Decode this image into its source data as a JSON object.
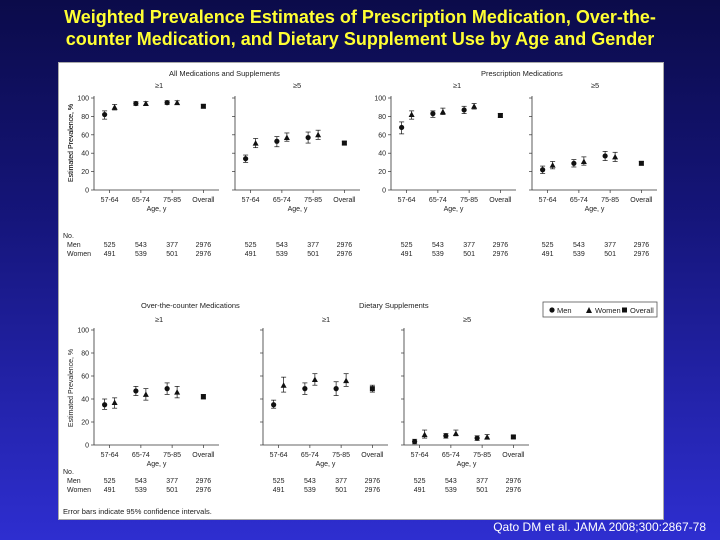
{
  "slide": {
    "title_line1": "Weighted Prevalence Estimates of Prescription Medication, Over-the-",
    "title_line2": "counter Medication, and Dietary Supplement Use by Age and Gender",
    "citation": "Qato DM et al. JAMA 2008;300:2867-78",
    "footnote": "Error bars indicate 95% confidence intervals."
  },
  "legend": {
    "men": "Men",
    "women": "Women",
    "overall": "Overall"
  },
  "axes": {
    "ylabel": "Estimated Prevalence, %",
    "xlabel": "Age, y",
    "yticks": [
      "0",
      "20",
      "40",
      "60",
      "80",
      "100"
    ],
    "categories": [
      "57-64",
      "65-74",
      "75-85",
      "Overall"
    ]
  },
  "counts": {
    "no_label": "No.",
    "men_label": "Men",
    "women_label": "Women",
    "men": [
      "525",
      "543",
      "377",
      "2976"
    ],
    "women": [
      "491",
      "539",
      "501",
      "2976"
    ]
  },
  "chart_data": [
    {
      "type": "scatter",
      "title": "All Medications and Supplements",
      "subtitle": "≥1",
      "categories": [
        "57-64",
        "65-74",
        "75-85",
        "Overall"
      ],
      "ylim": [
        0,
        100
      ],
      "series": [
        {
          "name": "Men",
          "values": [
            82,
            94,
            95,
            null
          ],
          "ci_low": [
            77,
            92,
            93,
            null
          ],
          "ci_high": [
            86,
            96,
            97,
            null
          ]
        },
        {
          "name": "Women",
          "values": [
            90,
            94,
            95,
            null
          ],
          "ci_low": [
            87,
            92,
            93,
            null
          ],
          "ci_high": [
            93,
            96,
            97,
            null
          ]
        },
        {
          "name": "Overall",
          "values": [
            null,
            null,
            null,
            91
          ],
          "ci_low": [
            null,
            null,
            null,
            89
          ],
          "ci_high": [
            null,
            null,
            null,
            93
          ]
        }
      ]
    },
    {
      "type": "scatter",
      "title": "",
      "subtitle": "≥5",
      "categories": [
        "57-64",
        "65-74",
        "75-85",
        "Overall"
      ],
      "ylim": [
        0,
        100
      ],
      "series": [
        {
          "name": "Men",
          "values": [
            34,
            53,
            57,
            null
          ],
          "ci_low": [
            30,
            47,
            51,
            null
          ],
          "ci_high": [
            38,
            58,
            63,
            null
          ]
        },
        {
          "name": "Women",
          "values": [
            51,
            57,
            60,
            null
          ],
          "ci_low": [
            46,
            53,
            55,
            null
          ],
          "ci_high": [
            56,
            62,
            65,
            null
          ]
        },
        {
          "name": "Overall",
          "values": [
            null,
            null,
            null,
            51
          ],
          "ci_low": [
            null,
            null,
            null,
            49
          ],
          "ci_high": [
            null,
            null,
            null,
            53
          ]
        }
      ]
    },
    {
      "type": "scatter",
      "title": "Prescription Medications",
      "subtitle": "≥1",
      "categories": [
        "57-64",
        "65-74",
        "75-85",
        "Overall"
      ],
      "ylim": [
        0,
        100
      ],
      "series": [
        {
          "name": "Men",
          "values": [
            68,
            83,
            87,
            null
          ],
          "ci_low": [
            61,
            79,
            83,
            null
          ],
          "ci_high": [
            74,
            86,
            91,
            null
          ]
        },
        {
          "name": "Women",
          "values": [
            82,
            85,
            91,
            null
          ],
          "ci_low": [
            77,
            82,
            88,
            null
          ],
          "ci_high": [
            86,
            89,
            94,
            null
          ]
        },
        {
          "name": "Overall",
          "values": [
            null,
            null,
            null,
            81
          ],
          "ci_low": [
            null,
            null,
            null,
            79
          ],
          "ci_high": [
            null,
            null,
            null,
            83
          ]
        }
      ]
    },
    {
      "type": "scatter",
      "title": "",
      "subtitle": "≥5",
      "categories": [
        "57-64",
        "65-74",
        "75-85",
        "Overall"
      ],
      "ylim": [
        0,
        100
      ],
      "series": [
        {
          "name": "Men",
          "values": [
            22,
            29,
            37,
            null
          ],
          "ci_low": [
            18,
            25,
            32,
            null
          ],
          "ci_high": [
            26,
            33,
            42,
            null
          ]
        },
        {
          "name": "Women",
          "values": [
            27,
            31,
            36,
            null
          ],
          "ci_low": [
            23,
            27,
            31,
            null
          ],
          "ci_high": [
            31,
            36,
            41,
            null
          ]
        },
        {
          "name": "Overall",
          "values": [
            null,
            null,
            null,
            29
          ],
          "ci_low": [
            null,
            null,
            null,
            27
          ],
          "ci_high": [
            null,
            null,
            null,
            31
          ]
        }
      ]
    },
    {
      "type": "scatter",
      "title": "Over-the-counter Medications",
      "subtitle": "≥1",
      "categories": [
        "57-64",
        "65-74",
        "75-85",
        "Overall"
      ],
      "ylim": [
        0,
        100
      ],
      "series": [
        {
          "name": "Men",
          "values": [
            35,
            47,
            49,
            null
          ],
          "ci_low": [
            31,
            43,
            44,
            null
          ],
          "ci_high": [
            40,
            51,
            54,
            null
          ]
        },
        {
          "name": "Women",
          "values": [
            37,
            44,
            46,
            null
          ],
          "ci_low": [
            32,
            39,
            41,
            null
          ],
          "ci_high": [
            41,
            49,
            51,
            null
          ]
        },
        {
          "name": "Overall",
          "values": [
            null,
            null,
            null,
            42
          ],
          "ci_low": [
            null,
            null,
            null,
            40
          ],
          "ci_high": [
            null,
            null,
            null,
            44
          ]
        }
      ]
    },
    {
      "type": "scatter",
      "title": "Dietary Supplements",
      "subtitle": "≥1",
      "categories": [
        "57-64",
        "65-74",
        "75-85",
        "Overall"
      ],
      "ylim": [
        0,
        100
      ],
      "series": [
        {
          "name": "Men",
          "values": [
            35,
            49,
            49,
            null
          ],
          "ci_low": [
            32,
            44,
            43,
            null
          ],
          "ci_high": [
            39,
            54,
            55,
            null
          ]
        },
        {
          "name": "Women",
          "values": [
            52,
            57,
            56,
            null
          ],
          "ci_low": [
            46,
            52,
            51,
            null
          ],
          "ci_high": [
            59,
            62,
            62,
            null
          ]
        },
        {
          "name": "Overall",
          "values": [
            null,
            null,
            null,
            49
          ],
          "ci_low": [
            null,
            null,
            null,
            46
          ],
          "ci_high": [
            null,
            null,
            null,
            52
          ]
        }
      ]
    },
    {
      "type": "scatter",
      "title": "",
      "subtitle": "≥5",
      "categories": [
        "57-64",
        "65-74",
        "75-85",
        "Overall"
      ],
      "ylim": [
        0,
        100
      ],
      "series": [
        {
          "name": "Men",
          "values": [
            3,
            8,
            6,
            null
          ],
          "ci_low": [
            1,
            6,
            4,
            null
          ],
          "ci_high": [
            5,
            10,
            8,
            null
          ]
        },
        {
          "name": "Women",
          "values": [
            9,
            10,
            7,
            null
          ],
          "ci_low": [
            6,
            8,
            5,
            null
          ],
          "ci_high": [
            13,
            13,
            9,
            null
          ]
        },
        {
          "name": "Overall",
          "values": [
            null,
            null,
            null,
            7
          ],
          "ci_low": [
            null,
            null,
            null,
            6
          ],
          "ci_high": [
            null,
            null,
            null,
            8
          ]
        }
      ]
    }
  ]
}
